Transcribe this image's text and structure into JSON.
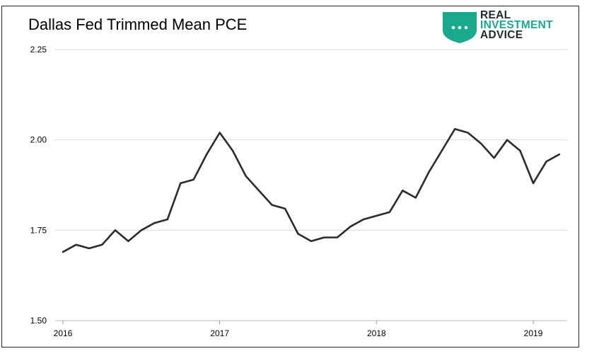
{
  "logo": {
    "line1": "REAL",
    "line2": "INVESTMENT",
    "line3": "ADVICE",
    "colors": {
      "accent": "#1aa98d",
      "dark": "#1f2b2a"
    }
  },
  "chart_data": {
    "type": "line",
    "title": "Dallas Fed Trimmed Mean PCE",
    "xlabel": "",
    "ylabel": "",
    "ylim": [
      1.5,
      2.25
    ],
    "yticks": [
      1.5,
      1.75,
      2.0,
      2.25
    ],
    "ytick_labels": [
      "1.50",
      "1.75",
      "2.00",
      "2.25"
    ],
    "xlim": [
      "2016-01",
      "2019-03"
    ],
    "xticks": [
      "2016-01",
      "2017-01",
      "2018-01",
      "2019-01"
    ],
    "xtick_labels": [
      "2016",
      "2017",
      "2018",
      "2019"
    ],
    "grid": "horizontal",
    "line_color": "#2b2b2b",
    "series": [
      {
        "x": [
          "2016-01",
          "2016-02",
          "2016-03",
          "2016-04",
          "2016-05",
          "2016-06",
          "2016-07",
          "2016-08",
          "2016-09",
          "2016-10",
          "2016-11",
          "2016-12",
          "2017-01",
          "2017-02",
          "2017-03",
          "2017-04",
          "2017-05",
          "2017-06",
          "2017-07",
          "2017-08",
          "2017-09",
          "2017-10",
          "2017-11",
          "2017-12",
          "2018-01",
          "2018-02",
          "2018-03",
          "2018-04",
          "2018-05",
          "2018-06",
          "2018-07",
          "2018-08",
          "2018-09",
          "2018-10",
          "2018-11",
          "2018-12",
          "2019-01",
          "2019-02",
          "2019-03"
        ],
        "values": [
          1.69,
          1.71,
          1.7,
          1.71,
          1.75,
          1.72,
          1.75,
          1.77,
          1.78,
          1.88,
          1.89,
          1.96,
          2.02,
          1.97,
          1.9,
          1.86,
          1.82,
          1.81,
          1.74,
          1.72,
          1.73,
          1.73,
          1.76,
          1.78,
          1.79,
          1.8,
          1.86,
          1.84,
          1.91,
          1.97,
          2.03,
          2.02,
          1.99,
          1.95,
          2.0,
          1.97,
          1.88,
          1.94,
          1.96
        ]
      }
    ]
  }
}
